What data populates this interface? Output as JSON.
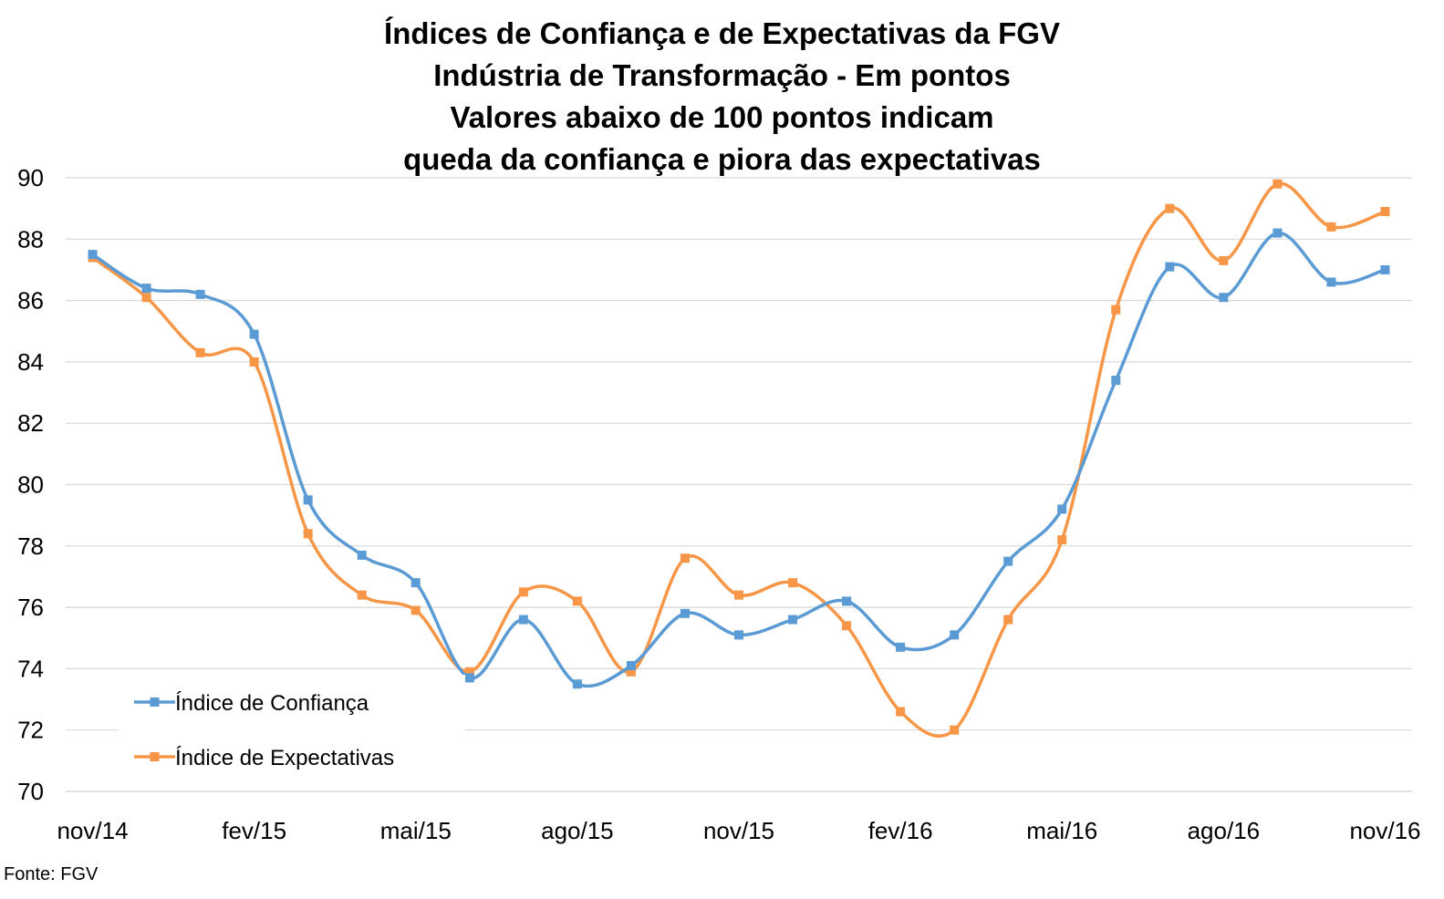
{
  "chart_data": {
    "type": "line",
    "title_lines": [
      "Índices de Confiança e de Expectativas da FGV",
      "Indústria de Transformação - Em pontos",
      "Valores abaixo de 100 pontos indicam",
      "queda da confiança e piora das expectativas"
    ],
    "x": [
      "nov/14",
      "dez/14",
      "jan/15",
      "fev/15",
      "mar/15",
      "abr/15",
      "mai/15",
      "jun/15",
      "jul/15",
      "ago/15",
      "set/15",
      "out/15",
      "nov/15",
      "dez/15",
      "jan/16",
      "fev/16",
      "mar/16",
      "abr/16",
      "mai/16",
      "jun/16",
      "jul/16",
      "ago/16",
      "set/16",
      "out/16",
      "nov/16"
    ],
    "x_tick_labels": [
      "nov/14",
      "fev/15",
      "mai/15",
      "ago/15",
      "nov/15",
      "fev/16",
      "mai/16",
      "ago/16",
      "nov/16"
    ],
    "series": [
      {
        "name": "Índice de Confiança",
        "color": "#5b9bd5",
        "values": [
          87.5,
          86.4,
          86.2,
          84.9,
          79.5,
          77.7,
          76.8,
          73.7,
          75.6,
          73.5,
          74.1,
          75.8,
          75.1,
          75.6,
          76.2,
          74.7,
          75.1,
          77.5,
          79.2,
          83.4,
          87.1,
          86.1,
          88.2,
          86.6,
          87.0
        ]
      },
      {
        "name": "Índice de Expectativas",
        "color": "#f79646",
        "values": [
          87.4,
          86.1,
          84.3,
          84.0,
          78.4,
          76.4,
          75.9,
          73.9,
          76.5,
          76.2,
          73.9,
          77.6,
          76.4,
          76.8,
          75.4,
          72.6,
          72.0,
          75.6,
          78.2,
          85.7,
          89.0,
          87.3,
          89.8,
          88.4,
          88.9
        ]
      }
    ],
    "y_ticks": [
      "70",
      "72",
      "74",
      "76",
      "78",
      "80",
      "82",
      "84",
      "86",
      "88",
      "90"
    ],
    "ylim": [
      70,
      90
    ],
    "grid": "horizontal",
    "legend_position": "bottom-left",
    "source_note": "Fonte: FGV"
  }
}
